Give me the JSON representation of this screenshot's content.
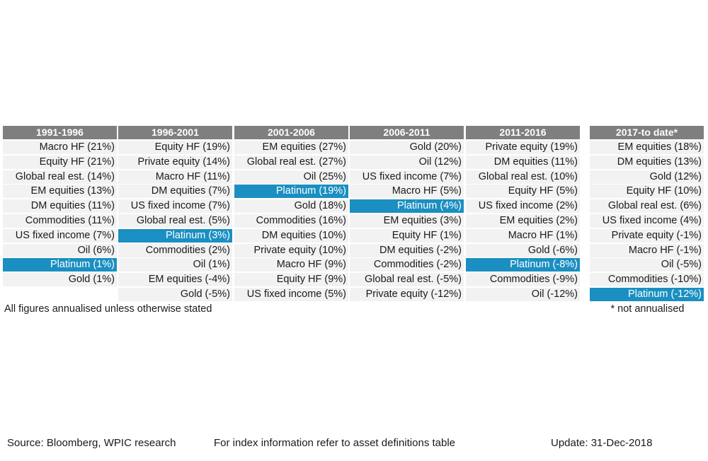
{
  "chart_data": {
    "type": "table",
    "highlight_asset": "Platinum",
    "highlight_color": "#1b8fc1",
    "header_color": "#7f7f7f",
    "cell_color": "#f2f2f2",
    "periods": [
      {
        "label": "1991-1996",
        "items": [
          "Macro HF (21%)",
          "Equity HF (21%)",
          "Global real est. (14%)",
          "EM equities (13%)",
          "DM equities (11%)",
          "Commodities (11%)",
          "US fixed income (7%)",
          "Oil (6%)",
          "Platinum (1%)",
          "Gold (1%)"
        ]
      },
      {
        "label": "1996-2001",
        "items": [
          "Equity HF (19%)",
          "Private equity (14%)",
          "Macro HF (11%)",
          "DM equities (7%)",
          "US fixed income (7%)",
          "Global real est. (5%)",
          "Platinum (3%)",
          "Commodities (2%)",
          "Oil (1%)",
          "EM equities (-4%)",
          "Gold (-5%)"
        ]
      },
      {
        "label": "2001-2006",
        "items": [
          "EM equities (27%)",
          "Global real est. (27%)",
          "Oil (25%)",
          "Platinum (19%)",
          "Gold (18%)",
          "Commodities (16%)",
          "DM equities (10%)",
          "Private equity (10%)",
          "Macro HF (9%)",
          "Equity HF (9%)",
          "US fixed income (5%)"
        ]
      },
      {
        "label": "2006-2011",
        "items": [
          "Gold (20%)",
          "Oil (12%)",
          "US fixed income (7%)",
          "Macro HF (5%)",
          "Platinum (4%)",
          "EM equities (3%)",
          "Equity HF (1%)",
          "DM equities (-2%)",
          "Commodities (-2%)",
          "Global real est. (-5%)",
          "Private equity (-12%)"
        ]
      },
      {
        "label": "2011-2016",
        "items": [
          "Private equity (19%)",
          "DM equities (11%)",
          "Global real est. (10%)",
          "Equity HF (5%)",
          "US fixed income (2%)",
          "EM equities (2%)",
          "Macro HF (1%)",
          "Gold (-6%)",
          "Platinum (-8%)",
          "Commodities (-9%)",
          "Oil (-12%)"
        ]
      },
      {
        "label": "2017-to date*",
        "items": [
          "EM equities (18%)",
          "DM equities (13%)",
          "Gold (12%)",
          "Equity HF (10%)",
          "Global real est. (6%)",
          "US fixed income (4%)",
          "Private equity (-1%)",
          "Macro HF (-1%)",
          "Oil (-5%)",
          "Commodities (-10%)",
          "Platinum (-12%)"
        ]
      }
    ]
  },
  "notes": {
    "annualised": "All figures annualised unless otherwise stated",
    "not_annualised": "* not annualised"
  },
  "footer": {
    "source": "Source: Bloomberg, WPIC research",
    "index_info": "For index information refer to asset definitions table",
    "update": "Update: 31-Dec-2018"
  }
}
